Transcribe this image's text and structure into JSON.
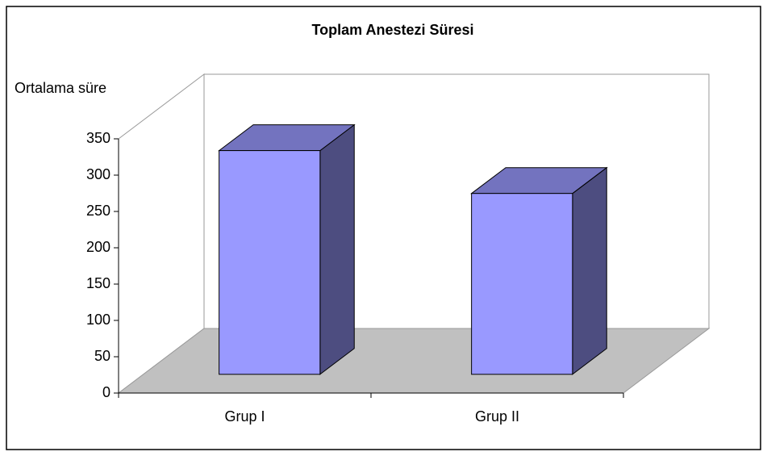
{
  "chart_data": {
    "type": "bar3d",
    "title": "Toplam Anestezi Süresi",
    "y_label": "Ortalama süre",
    "categories": [
      "Grup I",
      "Grup II"
    ],
    "values": [
      308,
      249
    ],
    "color": "#9999ff",
    "ylim": [
      0,
      350
    ],
    "yticks": [
      0,
      50,
      100,
      150,
      200,
      250,
      300,
      350
    ]
  }
}
